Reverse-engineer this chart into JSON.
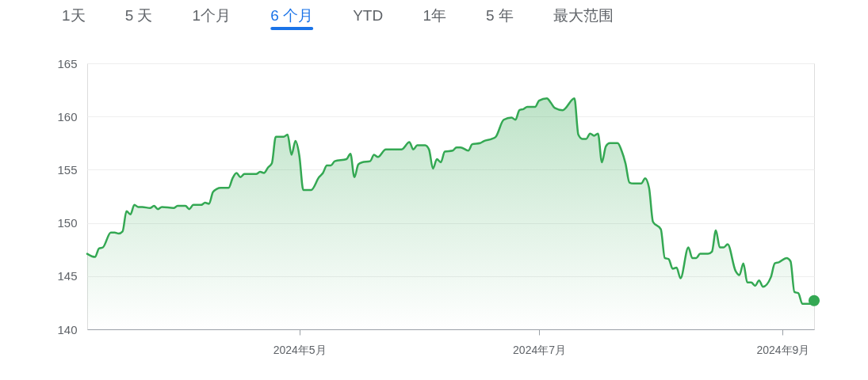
{
  "chart_data": {
    "type": "area",
    "annotations": [
      "1天",
      "5 天",
      "1个月",
      "6 个月",
      "YTD",
      "1年",
      "5 年",
      "最大范围"
    ],
    "xlim": [
      "2024-03-08",
      "2024-09-09"
    ],
    "xticks": [
      {
        "value": "2024-05-01",
        "label": "2024年5月"
      },
      {
        "value": "2024-07-01",
        "label": "2024年7月"
      },
      {
        "value": "2024-09-01",
        "label": "2024年9月"
      }
    ],
    "ylim": [
      140,
      165
    ],
    "yticks": [
      140,
      145,
      150,
      155,
      160,
      165
    ],
    "grid": "y",
    "series": [
      {
        "color": "#34a853",
        "x": [
          "2024-03-08",
          "2024-03-10",
          "2024-03-11",
          "2024-03-12",
          "2024-03-14",
          "2024-03-15",
          "2024-03-16",
          "2024-03-17",
          "2024-03-18",
          "2024-03-19",
          "2024-03-20",
          "2024-03-21",
          "2024-03-22",
          "2024-03-24",
          "2024-03-25",
          "2024-03-26",
          "2024-03-27",
          "2024-03-30",
          "2024-03-31",
          "2024-04-02",
          "2024-04-03",
          "2024-04-04",
          "2024-04-06",
          "2024-04-07",
          "2024-04-08",
          "2024-04-09",
          "2024-04-10",
          "2024-04-11",
          "2024-04-13",
          "2024-04-14",
          "2024-04-15",
          "2024-04-16",
          "2024-04-17",
          "2024-04-20",
          "2024-04-21",
          "2024-04-22",
          "2024-04-23",
          "2024-04-24",
          "2024-04-25",
          "2024-04-27",
          "2024-04-28",
          "2024-04-29",
          "2024-04-30",
          "2024-05-01",
          "2024-05-02",
          "2024-05-04",
          "2024-05-06",
          "2024-05-07",
          "2024-05-08",
          "2024-05-09",
          "2024-05-10",
          "2024-05-13",
          "2024-05-14",
          "2024-05-15",
          "2024-05-16",
          "2024-05-17",
          "2024-05-19",
          "2024-05-20",
          "2024-05-21",
          "2024-05-23",
          "2024-05-25",
          "2024-05-27",
          "2024-05-29",
          "2024-05-30",
          "2024-05-31",
          "2024-06-02",
          "2024-06-03",
          "2024-06-04",
          "2024-06-05",
          "2024-06-06",
          "2024-06-07",
          "2024-06-09",
          "2024-06-10",
          "2024-06-11",
          "2024-06-13",
          "2024-06-14",
          "2024-06-16",
          "2024-06-17",
          "2024-06-19",
          "2024-06-20",
          "2024-06-22",
          "2024-06-24",
          "2024-06-25",
          "2024-06-26",
          "2024-06-27",
          "2024-06-28",
          "2024-06-30",
          "2024-07-01",
          "2024-07-03",
          "2024-07-04",
          "2024-07-05",
          "2024-07-07",
          "2024-07-10",
          "2024-07-11",
          "2024-07-12",
          "2024-07-13",
          "2024-07-14",
          "2024-07-15",
          "2024-07-16",
          "2024-07-17",
          "2024-07-18",
          "2024-07-19",
          "2024-07-21",
          "2024-07-22",
          "2024-07-23",
          "2024-07-24",
          "2024-07-25",
          "2024-07-27",
          "2024-07-28",
          "2024-07-29",
          "2024-07-30",
          "2024-08-01",
          "2024-08-02",
          "2024-08-03",
          "2024-08-04",
          "2024-08-05",
          "2024-08-06",
          "2024-08-08",
          "2024-08-09",
          "2024-08-10",
          "2024-08-11",
          "2024-08-13",
          "2024-08-14",
          "2024-08-15",
          "2024-08-16",
          "2024-08-17",
          "2024-08-18",
          "2024-08-20",
          "2024-08-21",
          "2024-08-22",
          "2024-08-23",
          "2024-08-24",
          "2024-08-25",
          "2024-08-26",
          "2024-08-27",
          "2024-08-29",
          "2024-08-30",
          "2024-08-31",
          "2024-09-02",
          "2024-09-03",
          "2024-09-04",
          "2024-09-05",
          "2024-09-06",
          "2024-09-07",
          "2024-09-08",
          "2024-09-09"
        ],
        "values": [
          147.1,
          146.8,
          147.6,
          147.7,
          149.1,
          149.1,
          149.0,
          149.2,
          151.1,
          150.8,
          151.7,
          151.5,
          151.5,
          151.4,
          151.6,
          151.3,
          151.5,
          151.4,
          151.6,
          151.6,
          151.3,
          151.7,
          151.7,
          151.9,
          151.8,
          152.9,
          153.2,
          153.3,
          153.3,
          154.2,
          154.7,
          154.3,
          154.6,
          154.6,
          154.8,
          154.7,
          155.2,
          155.6,
          158.1,
          158.1,
          158.3,
          156.4,
          157.7,
          156.3,
          153.1,
          153.1,
          154.3,
          154.7,
          155.4,
          155.4,
          155.8,
          156.0,
          156.5,
          154.3,
          155.5,
          155.7,
          155.8,
          156.4,
          156.2,
          156.9,
          156.9,
          156.9,
          157.6,
          156.9,
          157.3,
          157.3,
          156.9,
          155.1,
          156.0,
          155.7,
          156.7,
          156.8,
          157.1,
          157.1,
          156.8,
          157.4,
          157.5,
          157.7,
          157.9,
          158.1,
          159.7,
          159.9,
          159.7,
          160.6,
          160.7,
          160.9,
          160.9,
          161.5,
          161.7,
          161.3,
          160.8,
          160.6,
          161.7,
          158.3,
          157.9,
          157.9,
          158.4,
          158.2,
          158.4,
          155.7,
          157.2,
          157.5,
          157.5,
          156.8,
          155.6,
          153.8,
          153.7,
          153.7,
          154.2,
          153.3,
          150.1,
          149.4,
          146.7,
          146.6,
          145.7,
          145.8,
          144.8,
          147.7,
          146.7,
          146.7,
          147.1,
          147.1,
          147.3,
          149.3,
          147.7,
          147.7,
          148.0,
          145.5,
          145.1,
          146.2,
          144.4,
          144.4,
          144.1,
          144.6,
          144.0,
          144.9,
          146.2,
          146.3,
          146.7,
          146.4,
          143.5,
          143.4,
          142.4,
          142.4,
          142.4,
          142.7
        ]
      },
      {
        "type": "scatter",
        "color": "#34a853",
        "marker": "circle",
        "x": [
          "2024-09-09"
        ],
        "values": [
          142.7
        ]
      }
    ]
  }
}
